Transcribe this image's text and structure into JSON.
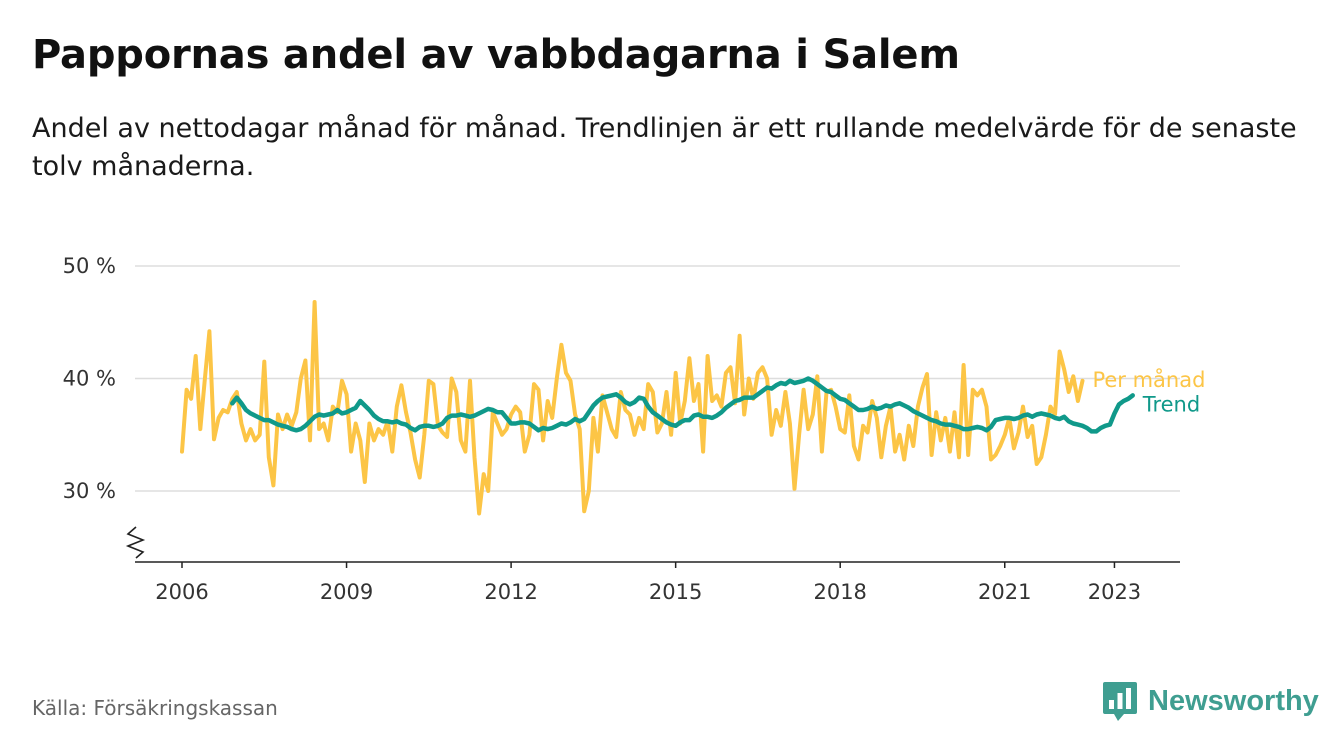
{
  "header": {
    "title": "Pappornas andel av vabbdagarna i Salem",
    "subtitle": "Andel av nettodagar månad för månad. Trendlinjen är ett rullande medelvärde för de senaste tolv månaderna."
  },
  "footer": {
    "source": "Källa: Försäkringskassan",
    "brand": "Newsworthy"
  },
  "colors": {
    "monthly": "#fcc546",
    "trend": "#10998a",
    "grid": "#dddddd",
    "axis": "#222222",
    "brand": "#3f9e91"
  },
  "chart_data": {
    "type": "line",
    "xlabel": "",
    "ylabel": "",
    "ylim": [
      24,
      50
    ],
    "yticks": [
      30,
      40,
      50
    ],
    "ytick_labels": [
      "30 %",
      "40 %",
      "50 %"
    ],
    "xticks": [
      2006,
      2009,
      2012,
      2015,
      2018,
      2021,
      2023
    ],
    "xtick_labels": [
      "2006",
      "2009",
      "2012",
      "2015",
      "2018",
      "2021",
      "2023"
    ],
    "axis_break": true,
    "grid": true,
    "legend": "inline labels at right end of lines",
    "series": [
      {
        "name": "Per månad",
        "x_start": "2006-01",
        "interval": "month",
        "values": [
          33.5,
          39.0,
          38.2,
          42.0,
          35.5,
          40.0,
          44.2,
          34.6,
          36.5,
          37.2,
          37.0,
          38.2,
          38.8,
          36.0,
          34.5,
          35.5,
          34.5,
          35.0,
          41.5,
          33.0,
          30.5,
          36.8,
          35.5,
          36.8,
          35.8,
          37.0,
          40.0,
          41.6,
          34.5,
          46.8,
          35.5,
          36.0,
          34.5,
          37.5,
          37.0,
          39.8,
          38.6,
          33.5,
          36.0,
          34.5,
          30.8,
          36.0,
          34.5,
          35.5,
          35.0,
          36.2,
          33.5,
          37.5,
          39.4,
          37.0,
          35.2,
          32.8,
          31.2,
          35.0,
          39.8,
          39.5,
          35.8,
          35.2,
          34.8,
          40.0,
          38.8,
          34.5,
          33.5,
          39.8,
          33.0,
          28.0,
          31.5,
          30.0,
          37.0,
          36.0,
          35.0,
          35.5,
          36.8,
          37.5,
          37.0,
          33.5,
          35.0,
          39.5,
          39.0,
          34.5,
          38.0,
          36.5,
          40.0,
          43.0,
          40.5,
          39.8,
          36.8,
          35.5,
          28.2,
          30.0,
          36.5,
          33.5,
          38.5,
          37.0,
          35.5,
          34.8,
          38.8,
          37.2,
          36.8,
          35.0,
          36.5,
          35.5,
          39.5,
          38.8,
          35.2,
          36.0,
          38.8,
          35.0,
          40.5,
          36.0,
          38.0,
          41.8,
          38.0,
          39.5,
          33.5,
          42.0,
          38.0,
          38.5,
          37.5,
          40.5,
          41.0,
          37.8,
          43.8,
          36.8,
          40.0,
          38.2,
          40.5,
          41.0,
          40.0,
          35.0,
          37.2,
          35.8,
          38.8,
          36.0,
          30.2,
          35.0,
          39.0,
          35.5,
          36.8,
          40.2,
          33.5,
          38.8,
          39.0,
          37.5,
          35.5,
          35.2,
          38.5,
          34.0,
          32.8,
          35.8,
          35.2,
          38.0,
          36.5,
          33.0,
          35.8,
          37.5,
          33.5,
          35.0,
          32.8,
          35.8,
          34.0,
          37.5,
          39.2,
          40.4,
          33.2,
          37.0,
          34.5,
          36.5,
          33.5,
          37.0,
          33.0,
          41.2,
          33.2,
          39.0,
          38.5,
          39.0,
          37.5,
          32.8,
          33.2,
          34.0,
          35.0,
          36.5,
          33.8,
          35.2,
          37.5,
          34.8,
          35.8,
          32.4,
          33.0,
          35.0,
          37.5,
          36.8,
          42.4,
          40.8,
          38.8,
          40.2,
          38.0,
          39.8
        ]
      },
      {
        "name": "Trend",
        "x_start": "2006-12",
        "interval": "month",
        "values": [
          37.8,
          38.3,
          37.8,
          37.2,
          36.9,
          36.7,
          36.5,
          36.3,
          36.3,
          36.1,
          35.9,
          35.8,
          35.7,
          35.5,
          35.4,
          35.5,
          35.8,
          36.2,
          36.6,
          36.8,
          36.7,
          36.8,
          36.9,
          37.2,
          36.9,
          37.0,
          37.2,
          37.4,
          38.0,
          37.6,
          37.2,
          36.7,
          36.4,
          36.2,
          36.2,
          36.1,
          36.2,
          36.0,
          35.9,
          35.6,
          35.4,
          35.7,
          35.8,
          35.8,
          35.7,
          35.8,
          36.0,
          36.5,
          36.7,
          36.7,
          36.8,
          36.7,
          36.6,
          36.7,
          36.9,
          37.1,
          37.3,
          37.2,
          37.0,
          37.0,
          36.5,
          36.0,
          36.0,
          36.1,
          36.1,
          36.0,
          35.7,
          35.4,
          35.6,
          35.5,
          35.6,
          35.8,
          36.0,
          35.9,
          36.1,
          36.4,
          36.2,
          36.4,
          37.0,
          37.6,
          38.0,
          38.3,
          38.4,
          38.5,
          38.6,
          38.3,
          37.9,
          37.7,
          37.9,
          38.3,
          38.2,
          37.5,
          37.0,
          36.7,
          36.4,
          36.1,
          35.9,
          35.8,
          36.1,
          36.3,
          36.3,
          36.7,
          36.8,
          36.6,
          36.6,
          36.5,
          36.7,
          37.0,
          37.4,
          37.7,
          38.0,
          38.1,
          38.3,
          38.3,
          38.3,
          38.6,
          38.9,
          39.2,
          39.1,
          39.4,
          39.6,
          39.5,
          39.8,
          39.6,
          39.7,
          39.8,
          40.0,
          39.8,
          39.5,
          39.2,
          38.9,
          38.8,
          38.5,
          38.2,
          38.1,
          37.8,
          37.5,
          37.2,
          37.2,
          37.3,
          37.5,
          37.3,
          37.4,
          37.6,
          37.5,
          37.7,
          37.8,
          37.6,
          37.4,
          37.1,
          36.9,
          36.7,
          36.5,
          36.3,
          36.2,
          36.0,
          35.9,
          35.9,
          35.8,
          35.7,
          35.5,
          35.5,
          35.6,
          35.7,
          35.6,
          35.4,
          35.7,
          36.3,
          36.4,
          36.5,
          36.5,
          36.4,
          36.5,
          36.7,
          36.8,
          36.6,
          36.8,
          36.9,
          36.8,
          36.7,
          36.5,
          36.4,
          36.6,
          36.2,
          36.0,
          35.9,
          35.8,
          35.6,
          35.3,
          35.3,
          35.6,
          35.8,
          35.9,
          36.9,
          37.7,
          38.0,
          38.2,
          38.5
        ]
      }
    ]
  }
}
